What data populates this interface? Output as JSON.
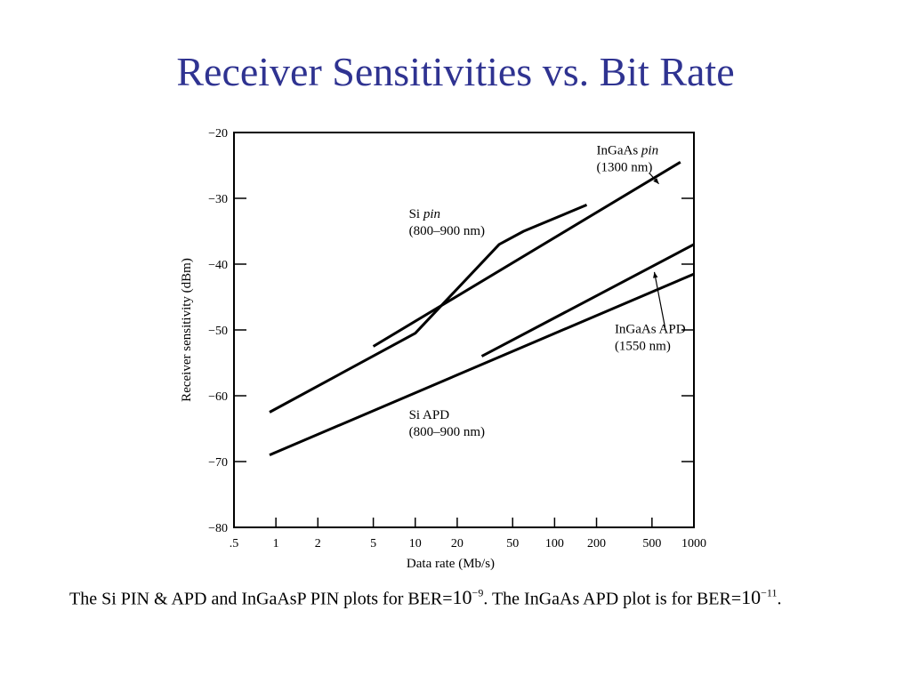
{
  "slide": {
    "title": "Receiver Sensitivities vs. Bit Rate"
  },
  "chart_data": {
    "type": "line",
    "xlabel": "Data rate (Mb/s)",
    "ylabel": "Receiver sensitivity (dBm)",
    "xscale": "log",
    "xlim": [
      0.5,
      1000
    ],
    "ylim": [
      -80,
      -20
    ],
    "xticks": [
      {
        "value": 0.5,
        "label": ".5"
      },
      {
        "value": 1,
        "label": "1"
      },
      {
        "value": 2,
        "label": "2"
      },
      {
        "value": 5,
        "label": "5"
      },
      {
        "value": 10,
        "label": "10"
      },
      {
        "value": 20,
        "label": "20"
      },
      {
        "value": 50,
        "label": "50"
      },
      {
        "value": 100,
        "label": "100"
      },
      {
        "value": 200,
        "label": "200"
      },
      {
        "value": 500,
        "label": "500"
      },
      {
        "value": 1000,
        "label": "1000"
      }
    ],
    "yticks": [
      {
        "value": -20,
        "label": "−20"
      },
      {
        "value": -30,
        "label": "−30"
      },
      {
        "value": -40,
        "label": "−40"
      },
      {
        "value": -50,
        "label": "−50"
      },
      {
        "value": -60,
        "label": "−60"
      },
      {
        "value": -70,
        "label": "−70"
      },
      {
        "value": -80,
        "label": "−80"
      }
    ],
    "series": [
      {
        "name": "Si pin",
        "label_lines": [
          "Si pin",
          "(800–900 nm)"
        ],
        "points": [
          [
            0.9,
            -62.5
          ],
          [
            10,
            -50.5
          ],
          [
            40,
            -37
          ],
          [
            60,
            -35
          ],
          [
            170,
            -31
          ]
        ]
      },
      {
        "name": "InGaAs pin",
        "label_lines": [
          "InGaAs pin",
          "(1300 nm)"
        ],
        "points": [
          [
            5,
            -52.5
          ],
          [
            800,
            -24.5
          ]
        ]
      },
      {
        "name": "InGaAs APD",
        "label_lines": [
          "InGaAs APD",
          "(1550 nm)"
        ],
        "points": [
          [
            30,
            -54
          ],
          [
            1000,
            -37
          ]
        ]
      },
      {
        "name": "Si APD",
        "label_lines": [
          "Si APD",
          "(800–900 nm)"
        ],
        "points": [
          [
            0.9,
            -69
          ],
          [
            1000,
            -41.5
          ]
        ]
      }
    ]
  },
  "caption": {
    "part1": "The Si PIN & APD and InGaAsP PIN plots for BER=",
    "base1": "10",
    "exp1": "−9",
    "part2": ". The InGaAs APD plot is for BER=",
    "base2": "10",
    "exp2": "−11",
    "part3": "."
  }
}
